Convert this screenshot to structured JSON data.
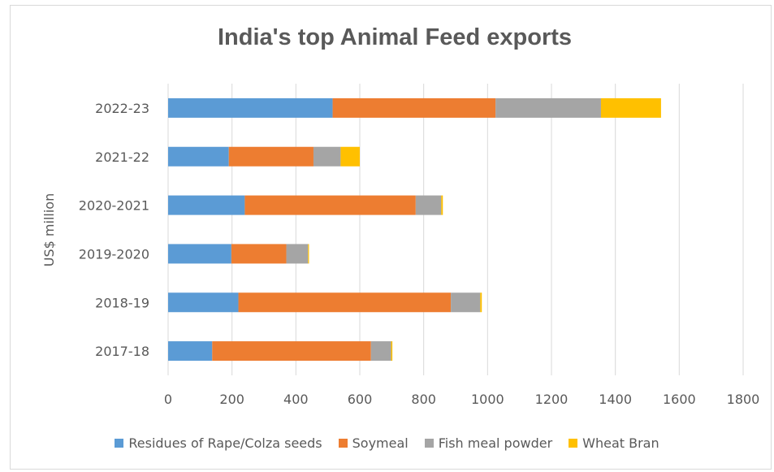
{
  "chart_data": {
    "type": "bar",
    "orientation": "horizontal",
    "stacked": true,
    "title": "India's top Animal Feed exports",
    "xlabel": "",
    "ylabel": "US$ million",
    "xlim": [
      0,
      1800
    ],
    "xticks": [
      0,
      200,
      400,
      600,
      800,
      1000,
      1200,
      1400,
      1600,
      1800
    ],
    "grid": "vertical",
    "legend_position": "bottom",
    "categories": [
      "2022-23",
      "2021-22",
      "2020-2021",
      "2019-2020",
      "2018-19",
      "2017-18"
    ],
    "series": [
      {
        "name": "Residues of Rape/Colza seeds",
        "color": "#5b9bd5",
        "values": [
          515,
          190,
          240,
          198,
          220,
          138
        ]
      },
      {
        "name": "Soymeal",
        "color": "#ed7d31",
        "values": [
          510,
          265,
          535,
          172,
          665,
          497
        ]
      },
      {
        "name": "Fish meal powder",
        "color": "#a5a5a5",
        "values": [
          330,
          85,
          80,
          68,
          92,
          63
        ]
      },
      {
        "name": "Wheat Bran",
        "color": "#ffc000",
        "values": [
          188,
          60,
          5,
          3,
          5,
          4
        ]
      }
    ]
  }
}
